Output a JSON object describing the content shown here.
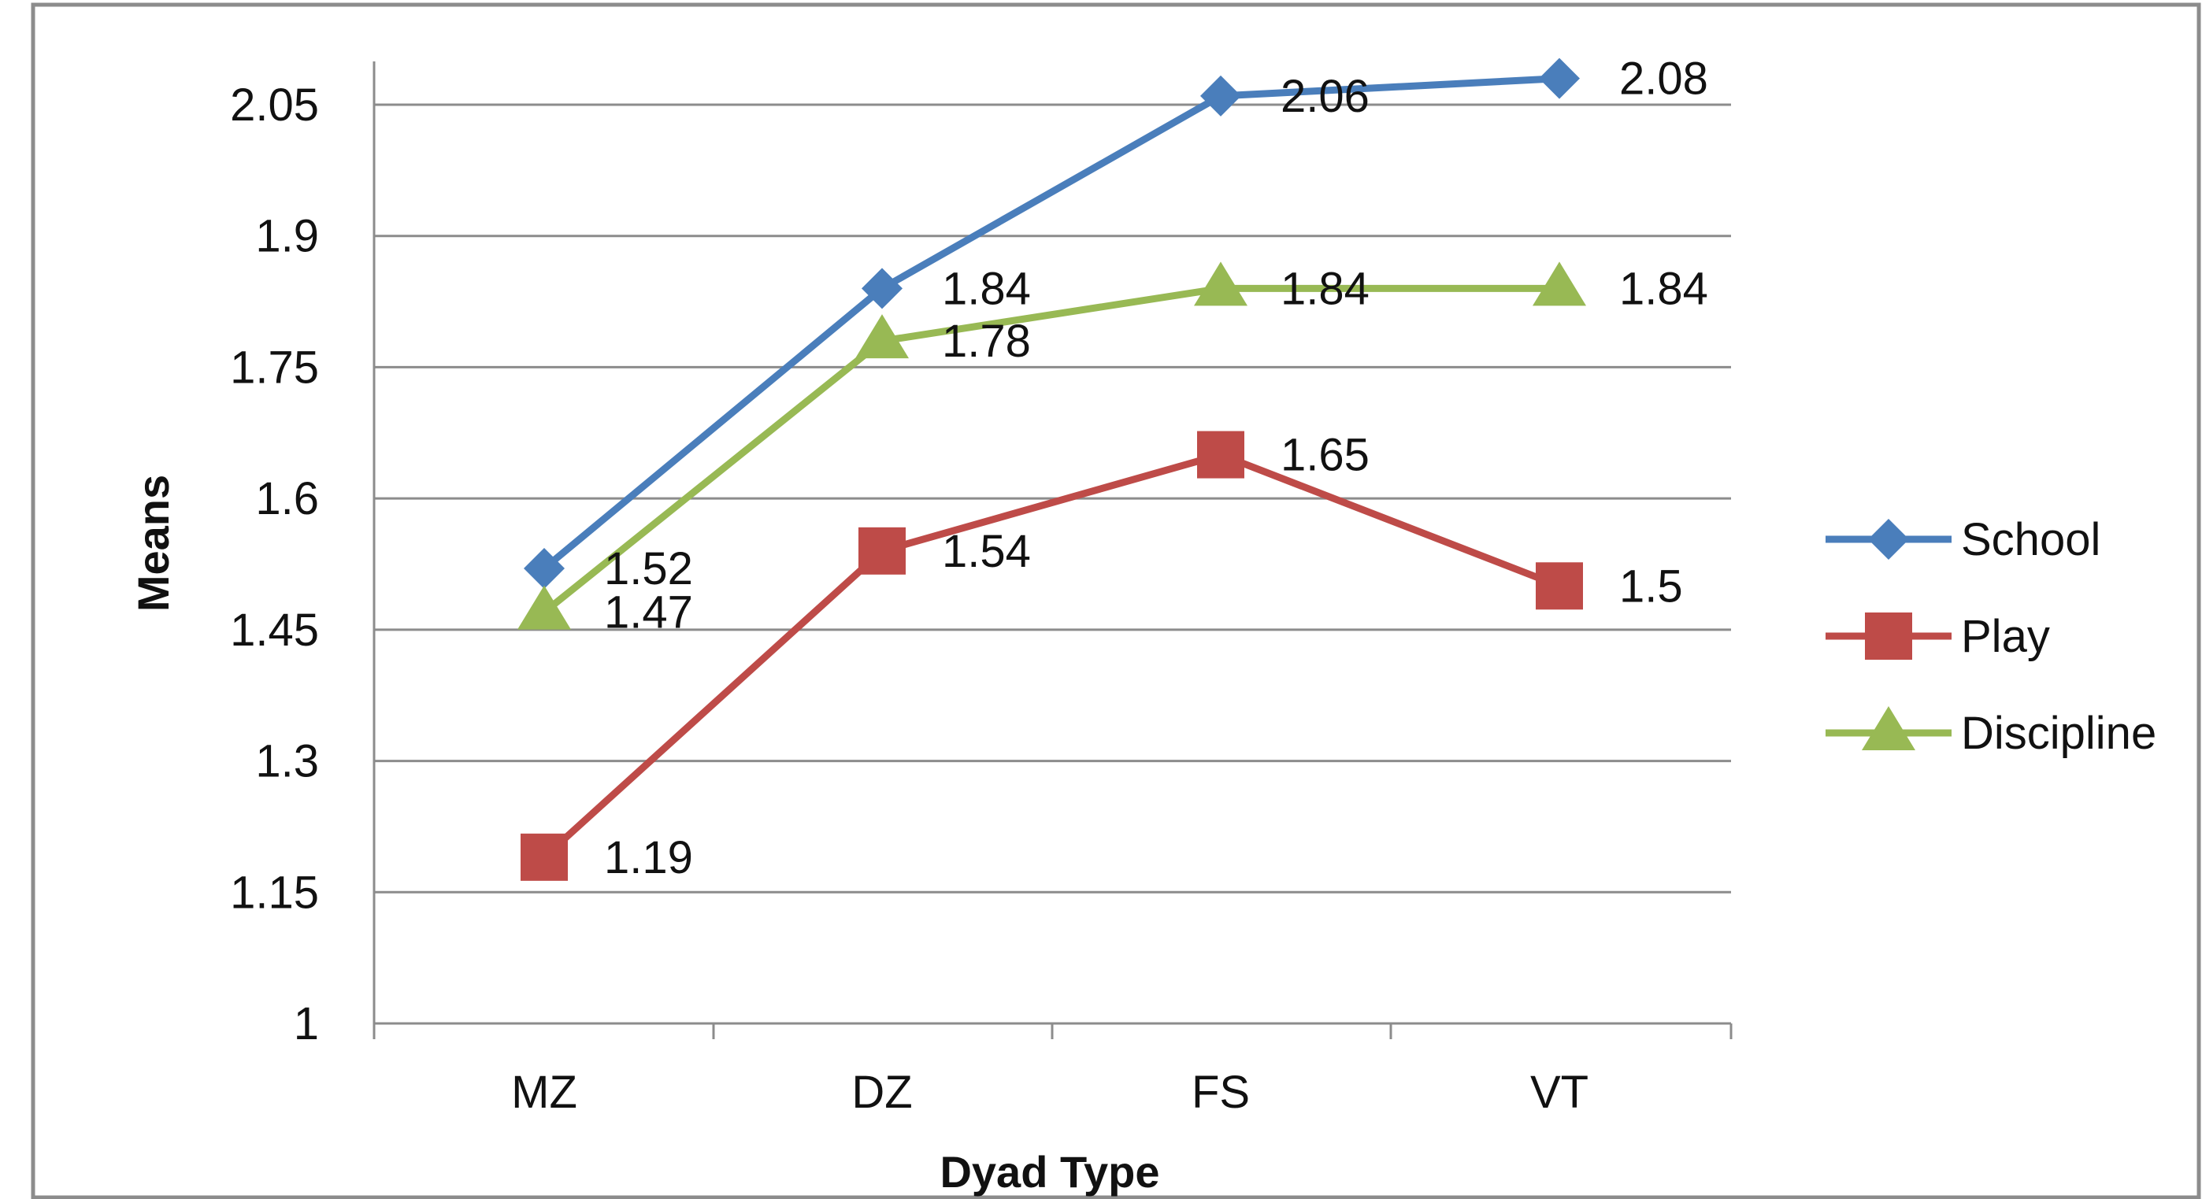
{
  "chart_data": {
    "type": "line",
    "title": "",
    "xlabel": "Dyad Type",
    "ylabel": "Means",
    "categories": [
      "MZ",
      "DZ",
      "FS",
      "VT"
    ],
    "ylim": [
      1,
      2.15
    ],
    "yticks": [
      "1",
      "1.15",
      "1.3",
      "1.45",
      "1.6",
      "1.75",
      "1.9",
      "2.05"
    ],
    "ytick_values": [
      1,
      1.15,
      1.3,
      1.45,
      1.6,
      1.75,
      1.9,
      2.05
    ],
    "grid": true,
    "legend_position": "right",
    "series": [
      {
        "name": "School",
        "values": [
          1.52,
          1.84,
          2.06,
          2.08
        ],
        "labels": [
          "1.52",
          "1.84",
          "2.06",
          "2.08"
        ],
        "color": "#4a7ebb",
        "marker": "diamond"
      },
      {
        "name": "Play",
        "values": [
          1.19,
          1.54,
          1.65,
          1.5
        ],
        "labels": [
          "1.19",
          "1.54",
          "1.65",
          "1.5"
        ],
        "color": "#be4b48",
        "marker": "square"
      },
      {
        "name": "Discipline",
        "values": [
          1.47,
          1.78,
          1.84,
          1.84
        ],
        "labels": [
          "1.47",
          "1.78",
          "1.84",
          "1.84"
        ],
        "color": "#98b954",
        "marker": "triangle"
      }
    ]
  }
}
